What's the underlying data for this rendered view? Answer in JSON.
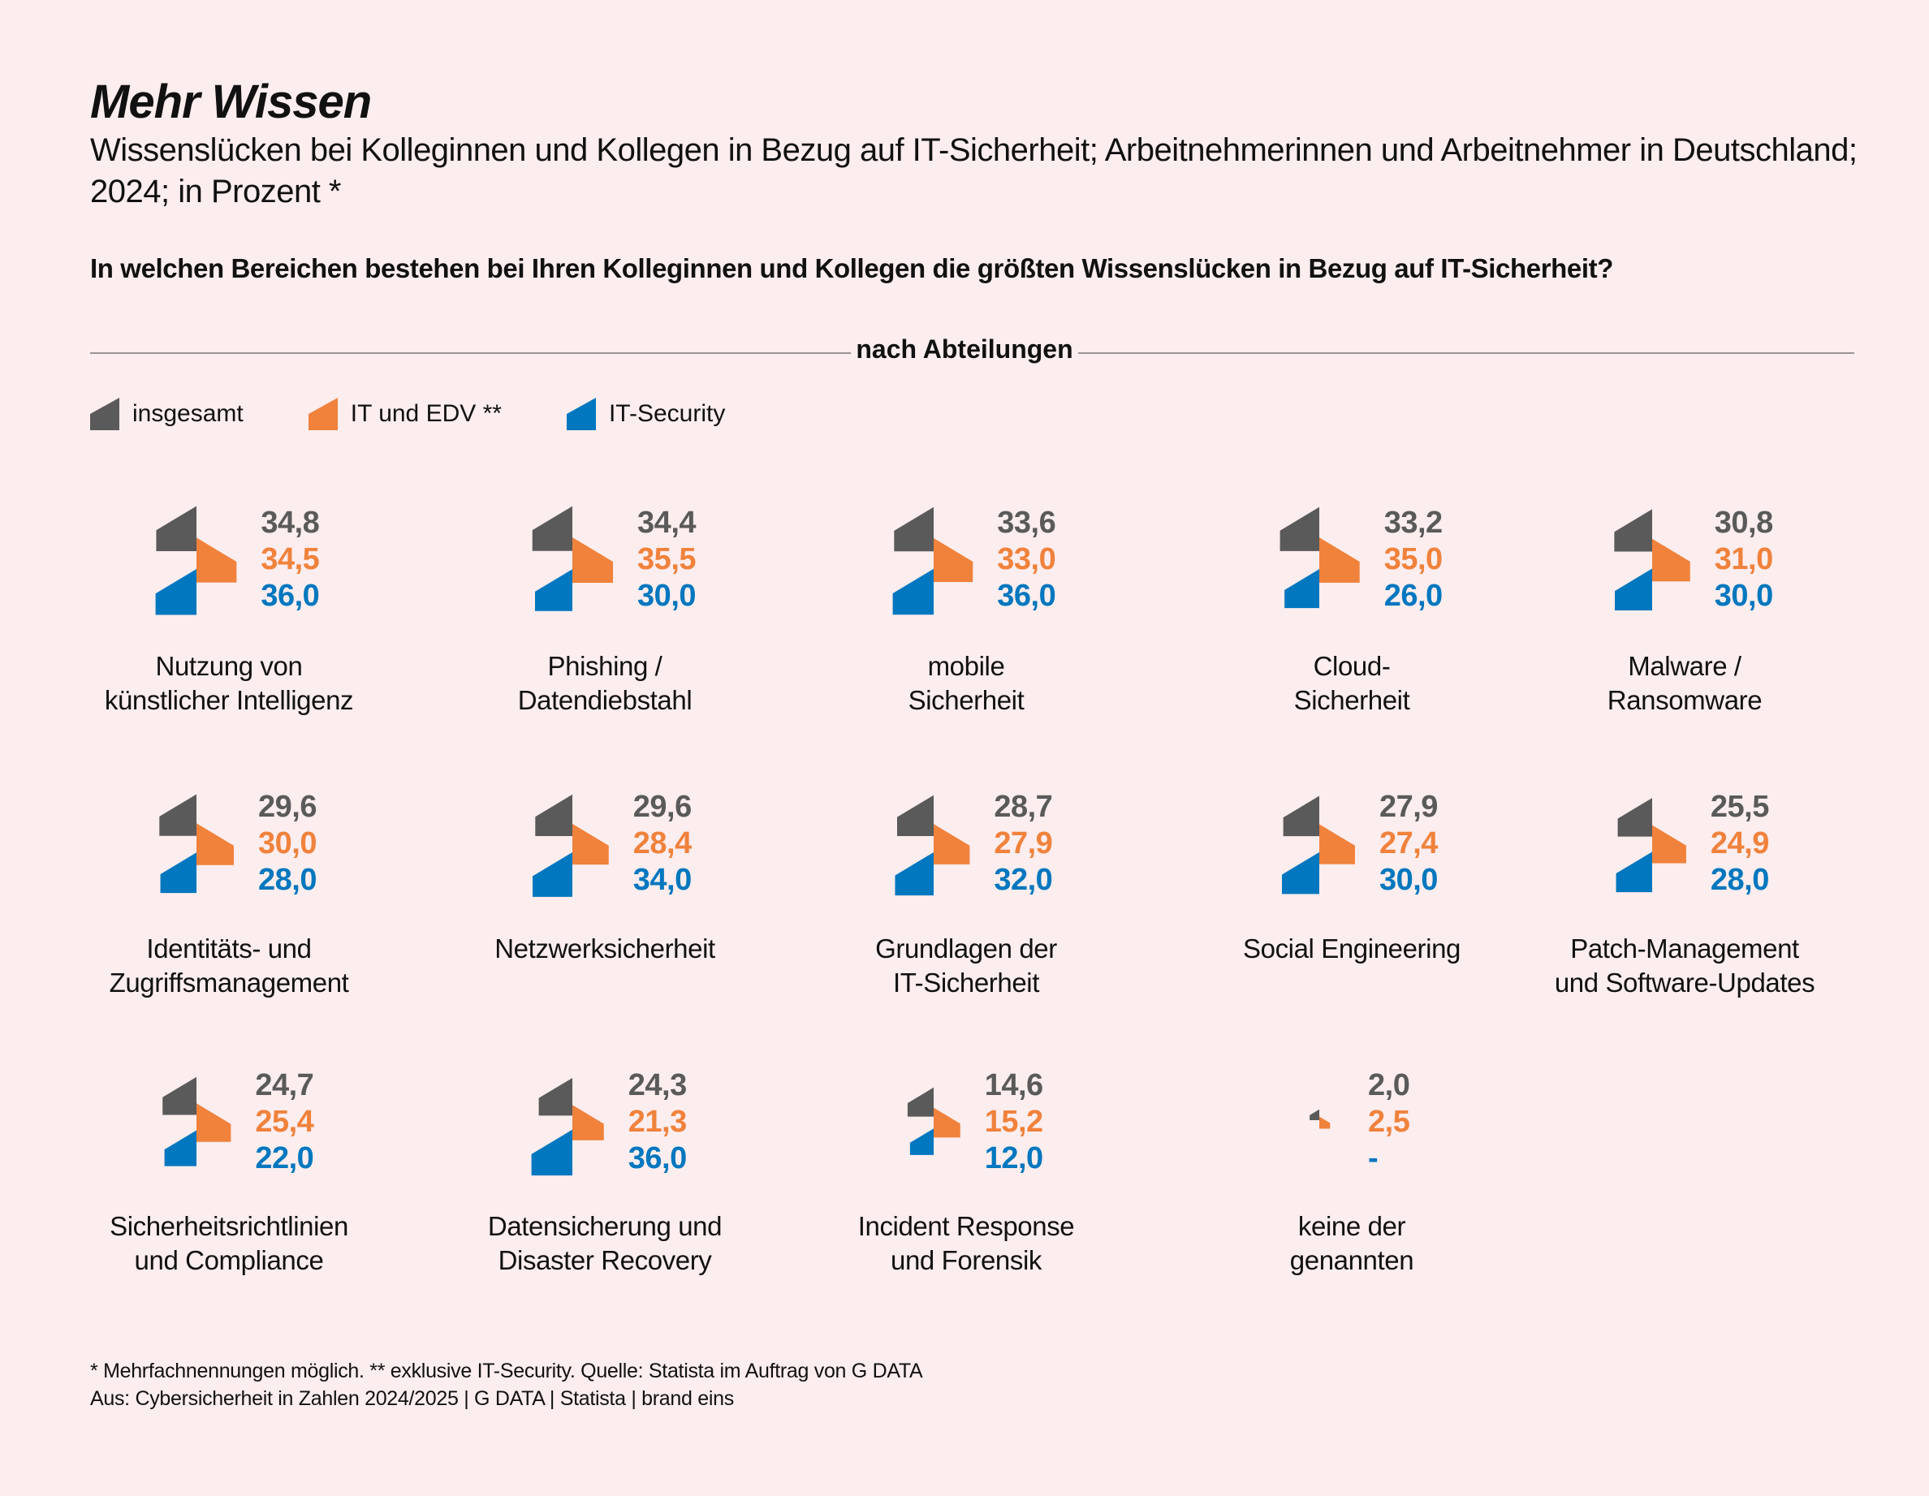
{
  "header": {
    "title": "Mehr Wissen",
    "subtitle": "Wissenslücken bei Kolleginnen und Kollegen in Bezug auf IT-Sicherheit; Arbeitnehmerinnen und Arbeitnehmer in Deutschland; 2024; in Prozent *",
    "question": "In welchen Bereichen bestehen bei Ihren Kolleginnen und Kollegen die größten Wissenslücken in Bezug auf IT-Sicherheit?",
    "section_label": "nach Abteilungen"
  },
  "colors": {
    "insgesamt": "#5a5a5a",
    "it_edv": "#f0823c",
    "it_security": "#0077be",
    "background": "#fcedee"
  },
  "legend": [
    {
      "label": "insgesamt",
      "key": "insgesamt"
    },
    {
      "label": "IT und EDV **",
      "key": "it_edv"
    },
    {
      "label": "IT-Security",
      "key": "it_security"
    }
  ],
  "chart_data": {
    "type": "bar",
    "title": "Mehr Wissen",
    "subtitle": "Wissenslücken bei Kolleginnen und Kollegen in Bezug auf IT-Sicherheit; Arbeitnehmerinnen und Arbeitnehmer in Deutschland; 2024; in Prozent *",
    "unit": "Prozent",
    "series_names": [
      "insgesamt",
      "IT und EDV **",
      "IT-Security"
    ],
    "categories": [
      {
        "label": "Nutzung von künstlicher Intelligenz",
        "lines": [
          "Nutzung von",
          "künstlicher Intelligenz"
        ],
        "insgesamt": 34.8,
        "it_edv": 34.5,
        "it_security": 36.0,
        "display": [
          "34,8",
          "34,5",
          "36,0"
        ]
      },
      {
        "label": "Phishing / Datendiebstahl",
        "lines": [
          "Phishing /",
          "Datendiebstahl"
        ],
        "insgesamt": 34.4,
        "it_edv": 35.5,
        "it_security": 30.0,
        "display": [
          "34,4",
          "35,5",
          "30,0"
        ]
      },
      {
        "label": "mobile Sicherheit",
        "lines": [
          "mobile",
          "Sicherheit"
        ],
        "insgesamt": 33.6,
        "it_edv": 33.0,
        "it_security": 36.0,
        "display": [
          "33,6",
          "33,0",
          "36,0"
        ]
      },
      {
        "label": "Cloud-Sicherheit",
        "lines": [
          "Cloud-",
          "Sicherheit"
        ],
        "insgesamt": 33.2,
        "it_edv": 35.0,
        "it_security": 26.0,
        "display": [
          "33,2",
          "35,0",
          "26,0"
        ]
      },
      {
        "label": "Malware / Ransomware",
        "lines": [
          "Malware /",
          "Ransomware"
        ],
        "insgesamt": 30.8,
        "it_edv": 31.0,
        "it_security": 30.0,
        "display": [
          "30,8",
          "31,0",
          "30,0"
        ]
      },
      {
        "label": "Identitäts- und Zugriffsmanagement",
        "lines": [
          "Identitäts- und",
          "Zugriffsmanagement"
        ],
        "insgesamt": 29.6,
        "it_edv": 30.0,
        "it_security": 28.0,
        "display": [
          "29,6",
          "30,0",
          "28,0"
        ]
      },
      {
        "label": "Netzwerksicherheit",
        "lines": [
          "Netzwerksicherheit"
        ],
        "insgesamt": 29.6,
        "it_edv": 28.4,
        "it_security": 34.0,
        "display": [
          "29,6",
          "28,4",
          "34,0"
        ]
      },
      {
        "label": "Grundlagen der IT-Sicherheit",
        "lines": [
          "Grundlagen der",
          "IT-Sicherheit"
        ],
        "insgesamt": 28.7,
        "it_edv": 27.9,
        "it_security": 32.0,
        "display": [
          "28,7",
          "27,9",
          "32,0"
        ]
      },
      {
        "label": "Social Engineering",
        "lines": [
          "Social Engineering"
        ],
        "insgesamt": 27.9,
        "it_edv": 27.4,
        "it_security": 30.0,
        "display": [
          "27,9",
          "27,4",
          "30,0"
        ]
      },
      {
        "label": "Patch-Management und Software-Updates",
        "lines": [
          "Patch-Management",
          "und Software-Updates"
        ],
        "insgesamt": 25.5,
        "it_edv": 24.9,
        "it_security": 28.0,
        "display": [
          "25,5",
          "24,9",
          "28,0"
        ]
      },
      {
        "label": "Sicherheitsrichtlinien und Compliance",
        "lines": [
          "Sicherheitsrichtlinien",
          "und Compliance"
        ],
        "insgesamt": 24.7,
        "it_edv": 25.4,
        "it_security": 22.0,
        "display": [
          "24,7",
          "25,4",
          "22,0"
        ]
      },
      {
        "label": "Datensicherung und Disaster Recovery",
        "lines": [
          "Datensicherung und",
          "Disaster Recovery"
        ],
        "insgesamt": 24.3,
        "it_edv": 21.3,
        "it_security": 36.0,
        "display": [
          "24,3",
          "21,3",
          "36,0"
        ]
      },
      {
        "label": "Incident Response und Forensik",
        "lines": [
          "Incident Response",
          "und Forensik"
        ],
        "insgesamt": 14.6,
        "it_edv": 15.2,
        "it_security": 12.0,
        "display": [
          "14,6",
          "15,2",
          "12,0"
        ]
      },
      {
        "label": "keine der genannten",
        "lines": [
          "keine der",
          "genannten"
        ],
        "insgesamt": 2.0,
        "it_edv": 2.5,
        "it_security": null,
        "display": [
          "2,0",
          "2,5",
          "-"
        ]
      }
    ]
  },
  "footer": {
    "note": "* Mehrfachnennungen möglich. ** exklusive IT-Security. Quelle: Statista im Auftrag von G DATA",
    "source": "Aus: Cybersicherheit in Zahlen 2024/2025 | G DATA | Statista | brand eins"
  }
}
